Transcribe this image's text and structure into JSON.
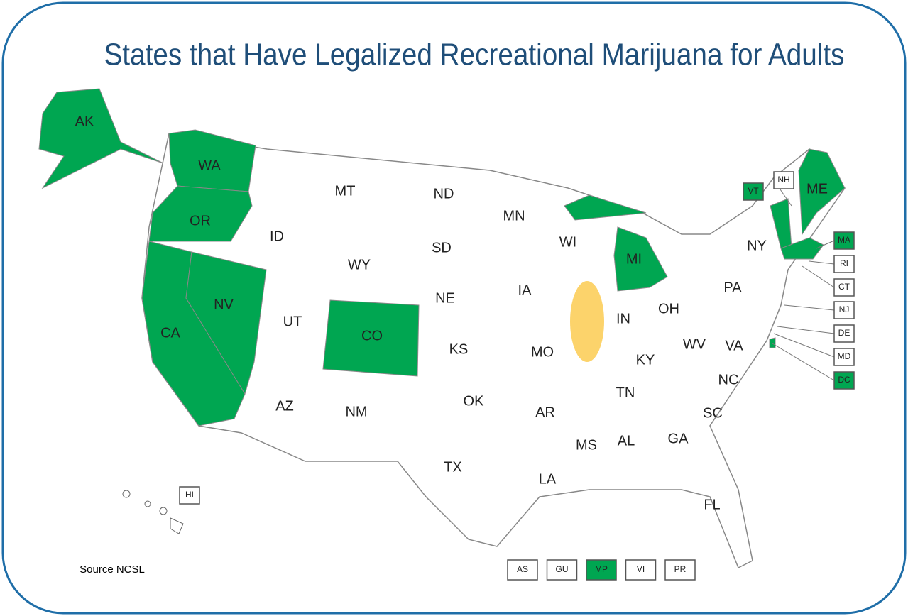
{
  "title": "States that Have Legalized Recreational Marijuana for Adults",
  "source": "Source NCSL",
  "states": [
    {
      "label": "AK",
      "legal": true
    },
    {
      "label": "WA",
      "legal": true
    },
    {
      "label": "OR",
      "legal": true
    },
    {
      "label": "CA",
      "legal": true
    },
    {
      "label": "NV",
      "legal": true
    },
    {
      "label": "ID",
      "legal": false
    },
    {
      "label": "MT",
      "legal": false
    },
    {
      "label": "WY",
      "legal": false
    },
    {
      "label": "UT",
      "legal": false
    },
    {
      "label": "CO",
      "legal": true
    },
    {
      "label": "AZ",
      "legal": false
    },
    {
      "label": "NM",
      "legal": false
    },
    {
      "label": "ND",
      "legal": false
    },
    {
      "label": "SD",
      "legal": false
    },
    {
      "label": "NE",
      "legal": false
    },
    {
      "label": "KS",
      "legal": false
    },
    {
      "label": "OK",
      "legal": false
    },
    {
      "label": "TX",
      "legal": false
    },
    {
      "label": "MN",
      "legal": false
    },
    {
      "label": "IA",
      "legal": false
    },
    {
      "label": "MO",
      "legal": false
    },
    {
      "label": "AR",
      "legal": false
    },
    {
      "label": "LA",
      "legal": false
    },
    {
      "label": "WI",
      "legal": false
    },
    {
      "label": "MI",
      "legal": true
    },
    {
      "label": "IN",
      "legal": false
    },
    {
      "label": "OH",
      "legal": false
    },
    {
      "label": "KY",
      "legal": false
    },
    {
      "label": "TN",
      "legal": false
    },
    {
      "label": "MS",
      "legal": false
    },
    {
      "label": "AL",
      "legal": false
    },
    {
      "label": "GA",
      "legal": false
    },
    {
      "label": "FL",
      "legal": false
    },
    {
      "label": "SC",
      "legal": false
    },
    {
      "label": "NC",
      "legal": false
    },
    {
      "label": "VA",
      "legal": false
    },
    {
      "label": "WV",
      "legal": false
    },
    {
      "label": "PA",
      "legal": false
    },
    {
      "label": "NY",
      "legal": false
    },
    {
      "label": "ME",
      "legal": true
    }
  ],
  "boxed": [
    {
      "label": "NH",
      "legal": false
    },
    {
      "label": "VT",
      "legal": true
    },
    {
      "label": "MA",
      "legal": true
    },
    {
      "label": "RI",
      "legal": false
    },
    {
      "label": "CT",
      "legal": false
    },
    {
      "label": "NJ",
      "legal": false
    },
    {
      "label": "DE",
      "legal": false
    },
    {
      "label": "MD",
      "legal": false
    },
    {
      "label": "DC",
      "legal": true
    },
    {
      "label": "HI",
      "legal": false
    }
  ],
  "territories": [
    {
      "label": "AS",
      "legal": false
    },
    {
      "label": "GU",
      "legal": false
    },
    {
      "label": "MP",
      "legal": true
    },
    {
      "label": "VI",
      "legal": false
    },
    {
      "label": "PR",
      "legal": false
    }
  ],
  "colors": {
    "legal": "#00a651",
    "other": "#ffffff"
  }
}
